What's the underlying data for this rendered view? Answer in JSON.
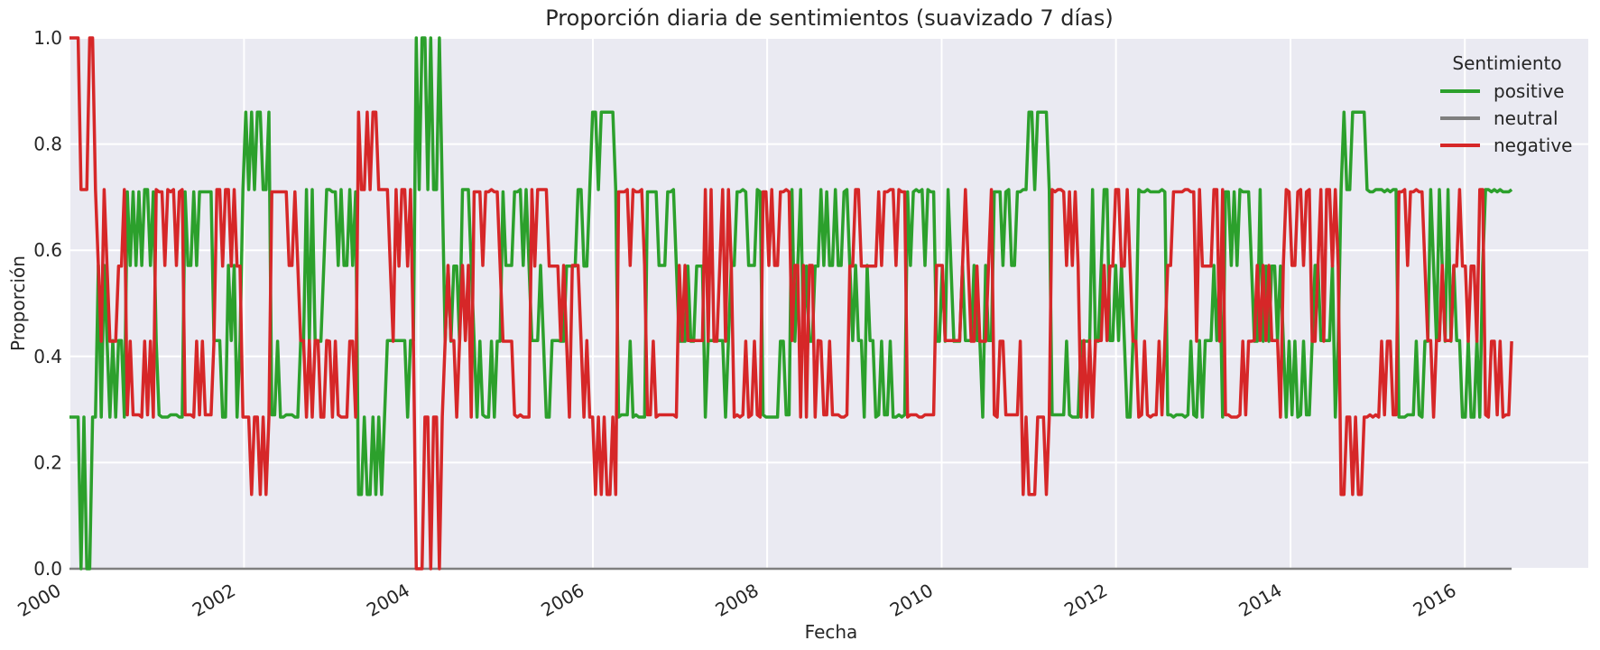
{
  "chart_data": {
    "type": "line",
    "title": "Proporción diaria de sentimientos (suavizado 7 días)",
    "xlabel": "Fecha",
    "ylabel": "Proporción",
    "x_range": [
      "2000-01-01",
      "2017-06-01"
    ],
    "data_span": [
      "2000-01-01",
      "2016-07-15"
    ],
    "ylim": [
      0.0,
      1.0
    ],
    "x_ticks": [
      "2000",
      "2002",
      "2004",
      "2006",
      "2008",
      "2010",
      "2012",
      "2014",
      "2016"
    ],
    "y_ticks": [
      "0.0",
      "0.2",
      "0.4",
      "0.6",
      "0.8",
      "1.0"
    ],
    "grid": true,
    "legend": {
      "title": "Sentimiento",
      "placement": "top-right",
      "entries": [
        "positive",
        "neutral",
        "negative"
      ]
    },
    "allowed_levels": [
      0.0,
      0.1429,
      0.2857,
      0.4286,
      0.5714,
      0.7143,
      0.8571,
      1.0
    ],
    "series": [
      {
        "name": "positive",
        "color": "#2ca02c",
        "pattern": "oscillating between 0.2857 and 0.7143 with excursions to 0.0–1.0",
        "values": [
          0.0,
          0.43,
          0.71,
          0.29,
          0.71,
          0.43,
          0.86,
          0.29,
          0.57,
          0.71,
          0.14,
          0.43,
          1.0,
          0.57,
          0.29,
          0.71,
          0.43,
          0.57,
          0.86,
          0.29,
          0.71,
          0.57,
          0.43,
          0.71,
          0.29,
          0.57,
          0.71,
          0.43,
          0.29,
          0.71,
          0.57,
          0.43,
          0.71,
          0.86,
          0.29,
          0.57,
          0.43,
          0.71,
          0.29,
          0.43,
          0.71,
          0.57,
          0.29,
          0.43,
          0.86,
          0.71,
          0.29,
          0.57,
          0.43,
          0.71
        ]
      },
      {
        "name": "neutral",
        "color": "#7f7f7f",
        "pattern": "constant at 0.0",
        "values": [
          0.0,
          0.0
        ]
      },
      {
        "name": "negative",
        "color": "#d62728",
        "pattern": "oscillating between 0.2857 and 0.7143 with excursions to 0.0–1.0",
        "values": [
          1.0,
          0.57,
          0.29,
          0.71,
          0.29,
          0.57,
          0.14,
          0.71,
          0.43,
          0.29,
          0.86,
          0.57,
          0.0,
          0.43,
          0.71,
          0.29,
          0.57,
          0.43,
          0.14,
          0.71,
          0.29,
          0.43,
          0.57,
          0.29,
          0.71,
          0.43,
          0.29,
          0.57,
          0.71,
          0.29,
          0.43,
          0.57,
          0.29,
          0.14,
          0.71,
          0.43,
          0.57,
          0.29,
          0.71,
          0.57,
          0.29,
          0.43,
          0.71,
          0.57,
          0.14,
          0.29,
          0.71,
          0.43,
          0.57,
          0.29
        ]
      }
    ]
  }
}
